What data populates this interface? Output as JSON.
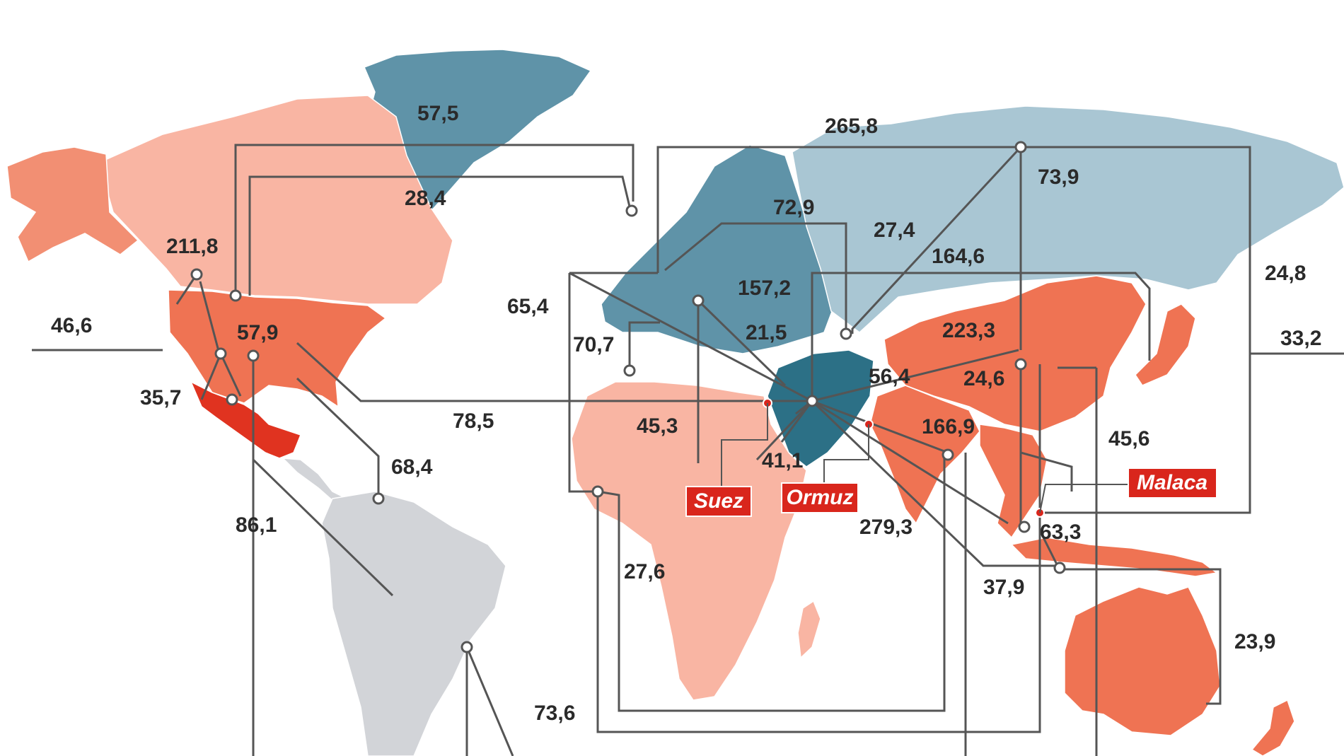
{
  "colors": {
    "exporter_dark": "#2c7086",
    "exporter_mid": "#5f93a8",
    "exporter_light": "#a9c6d3",
    "importer_light": "#f9b5a3",
    "importer_mid": "#f28f73",
    "importer_strong": "#ef7353",
    "importer_dark": "#e03320",
    "neutral": "#d2d4d8",
    "route_line": "#555555",
    "checkpoint_red": "#d9261c"
  },
  "regions": [
    {
      "name": "greenland",
      "fill": "exporter_mid"
    },
    {
      "name": "canada",
      "fill": "importer_light"
    },
    {
      "name": "alaska",
      "fill": "importer_mid"
    },
    {
      "name": "usa",
      "fill": "importer_strong"
    },
    {
      "name": "mexico",
      "fill": "importer_dark"
    },
    {
      "name": "central-america",
      "fill": "neutral"
    },
    {
      "name": "south-america",
      "fill": "neutral"
    },
    {
      "name": "europe",
      "fill": "exporter_mid"
    },
    {
      "name": "russia",
      "fill": "exporter_light"
    },
    {
      "name": "middle-east",
      "fill": "exporter_dark"
    },
    {
      "name": "africa",
      "fill": "importer_light"
    },
    {
      "name": "madagascar",
      "fill": "importer_light"
    },
    {
      "name": "china",
      "fill": "importer_strong"
    },
    {
      "name": "india",
      "fill": "importer_strong"
    },
    {
      "name": "southeast-asia",
      "fill": "importer_strong"
    },
    {
      "name": "japan",
      "fill": "importer_strong"
    },
    {
      "name": "indonesia",
      "fill": "importer_strong"
    },
    {
      "name": "australia",
      "fill": "importer_strong"
    },
    {
      "name": "new-zealand",
      "fill": "importer_strong"
    }
  ],
  "flows": [
    {
      "value": "57,5"
    },
    {
      "value": "265,8"
    },
    {
      "value": "73,9"
    },
    {
      "value": "28,4"
    },
    {
      "value": "72,9"
    },
    {
      "value": "27,4"
    },
    {
      "value": "211,8"
    },
    {
      "value": "164,6"
    },
    {
      "value": "24,8"
    },
    {
      "value": "157,2"
    },
    {
      "value": "65,4"
    },
    {
      "value": "46,6"
    },
    {
      "value": "57,9"
    },
    {
      "value": "21,5"
    },
    {
      "value": "223,3"
    },
    {
      "value": "33,2"
    },
    {
      "value": "70,7"
    },
    {
      "value": "56,4"
    },
    {
      "value": "24,6"
    },
    {
      "value": "35,7"
    },
    {
      "value": "78,5"
    },
    {
      "value": "45,3"
    },
    {
      "value": "166,9"
    },
    {
      "value": "45,6"
    },
    {
      "value": "68,4"
    },
    {
      "value": "41,1"
    },
    {
      "value": "86,1"
    },
    {
      "value": "279,3"
    },
    {
      "value": "63,3"
    },
    {
      "value": "27,6"
    },
    {
      "value": "37,9"
    },
    {
      "value": "23,9"
    },
    {
      "value": "73,6"
    }
  ],
  "checkpoints": [
    {
      "name": "Suez"
    },
    {
      "name": "Ormuz"
    },
    {
      "name": "Malaca"
    }
  ]
}
